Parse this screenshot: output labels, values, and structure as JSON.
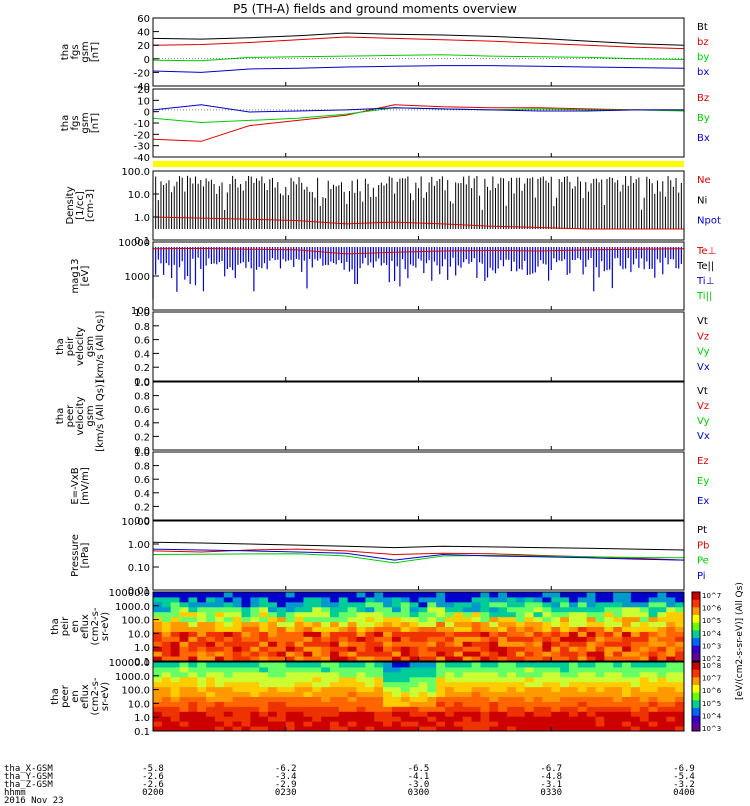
{
  "title": "P5 (TH-A) fields and ground moments overview",
  "colors": {
    "black": "#000000",
    "red": "#dd0000",
    "green": "#00cc00",
    "blue": "#0000cc",
    "yellow": "#ffff00"
  },
  "chart_data": {
    "type": "line",
    "x_ticks": [
      "0200",
      "0230",
      "0300",
      "0330",
      "0400"
    ],
    "panels": [
      {
        "id": "fgs-gsm",
        "ylabel": [
          "tha",
          "fgs",
          "gsm",
          "[nT]"
        ],
        "yticks": [
          "60",
          "40",
          "20",
          "0",
          "-20",
          "-40"
        ],
        "ylim": [
          -40,
          60
        ],
        "legend": [
          {
            "name": "Bt",
            "color": "#000000"
          },
          {
            "name": "bz",
            "color": "#dd0000"
          },
          {
            "name": "by",
            "color": "#00cc00"
          },
          {
            "name": "bx",
            "color": "#0000cc"
          }
        ],
        "series": [
          {
            "name": "Bt",
            "values": [
              30,
              29,
              31,
              34,
              38,
              36,
              35,
              33,
              30,
              26,
              22,
              20
            ]
          },
          {
            "name": "bz",
            "values": [
              20,
              21,
              24,
              28,
              32,
              30,
              28,
              26,
              23,
              20,
              17,
              15
            ]
          },
          {
            "name": "by",
            "values": [
              -2,
              -3,
              2,
              3,
              4,
              5,
              6,
              4,
              3,
              2,
              0,
              -1
            ]
          },
          {
            "name": "bx",
            "values": [
              -18,
              -20,
              -15,
              -14,
              -12,
              -11,
              -10,
              -10,
              -11,
              -12,
              -13,
              -14
            ]
          }
        ]
      },
      {
        "id": "fgs-gsm-2",
        "ylabel": [
          "tha",
          "fgs",
          "gsm",
          "[nT]"
        ],
        "yticks": [
          "20",
          "10",
          "0",
          "-10",
          "-20",
          "-30",
          "-40"
        ],
        "ylim": [
          -45,
          20
        ],
        "legend": [
          {
            "name": "Bz",
            "color": "#dd0000"
          },
          {
            "name": "By",
            "color": "#00cc00"
          },
          {
            "name": "Bx",
            "color": "#0000cc"
          }
        ],
        "series": [
          {
            "name": "Bz",
            "values": [
              -28,
              -30,
              -15,
              -10,
              -5,
              5,
              3,
              2,
              2,
              1,
              0,
              0
            ]
          },
          {
            "name": "By",
            "values": [
              -8,
              -12,
              -10,
              -8,
              -4,
              2,
              1,
              0,
              1,
              0,
              0,
              -1
            ]
          },
          {
            "name": "Bx",
            "values": [
              0,
              5,
              -2,
              -1,
              0,
              2,
              1,
              0,
              -1,
              -1,
              0,
              0
            ]
          }
        ]
      },
      {
        "id": "density",
        "ylabel": [
          "Density",
          "[1/cc]",
          "[cm-3]"
        ],
        "yticks": [
          "100.0",
          "10.0",
          "1.0",
          "0.1"
        ],
        "ylim": [
          0.1,
          100
        ],
        "legend": [
          {
            "name": "Ne",
            "color": "#dd0000"
          },
          {
            "name": "Ni",
            "color": "#000000"
          },
          {
            "name": "Npot",
            "color": "#0000cc"
          }
        ],
        "series": [
          {
            "name": "Ne",
            "values": [
              1.0,
              0.9,
              0.8,
              0.7,
              0.5,
              0.6,
              0.5,
              0.4,
              0.35,
              0.3,
              0.3,
              0.3
            ]
          }
        ]
      },
      {
        "id": "temperature",
        "ylabel": [
          "mag13",
          "[eV]"
        ],
        "yticks": [
          "10000",
          "1000",
          "100"
        ],
        "ylim": [
          10,
          10000
        ],
        "legend": [
          {
            "name": "Te⊥",
            "color": "#dd0000"
          },
          {
            "name": "Te||",
            "color": "#000000"
          },
          {
            "name": "Ti⊥",
            "color": "#0000cc"
          },
          {
            "name": "Ti||",
            "color": "#00cc00"
          }
        ],
        "series": [
          {
            "name": "Te⊥",
            "values": [
              5000,
              5200,
              4800,
              4500,
              3000,
              3500,
              4000,
              4200,
              4000,
              4500,
              4800,
              5000
            ]
          }
        ]
      },
      {
        "id": "peir-velocity",
        "ylabel": [
          "tha",
          "peir",
          "velocity",
          "gsm",
          "[km/s (All Qs)]"
        ],
        "yticks": [
          "1.0",
          "0.8",
          "0.6",
          "0.4",
          "0.2",
          "0.0"
        ],
        "ylim": [
          0,
          1
        ],
        "legend": [
          {
            "name": "Vt",
            "color": "#000000"
          },
          {
            "name": "Vz",
            "color": "#dd0000"
          },
          {
            "name": "Vy",
            "color": "#00cc00"
          },
          {
            "name": "Vx",
            "color": "#0000cc"
          }
        ],
        "series": []
      },
      {
        "id": "peer-velocity",
        "ylabel": [
          "tha",
          "peer",
          "velocity",
          "gsm",
          "[km/s (All Qs)]"
        ],
        "yticks": [
          "1.0",
          "0.8",
          "0.6",
          "0.4",
          "0.2",
          "0.0"
        ],
        "ylim": [
          0,
          1
        ],
        "legend": [
          {
            "name": "Vt",
            "color": "#000000"
          },
          {
            "name": "Vz",
            "color": "#dd0000"
          },
          {
            "name": "Vy",
            "color": "#00cc00"
          },
          {
            "name": "Vx",
            "color": "#0000cc"
          }
        ],
        "series": []
      },
      {
        "id": "efield",
        "ylabel": [
          "E=-VxB",
          "[mV/m]"
        ],
        "yticks": [
          "1.0",
          "0.8",
          "0.6",
          "0.4",
          "0.2",
          "0.0"
        ],
        "ylim": [
          0,
          1
        ],
        "legend": [
          {
            "name": "Ez",
            "color": "#dd0000"
          },
          {
            "name": "Ey",
            "color": "#00cc00"
          },
          {
            "name": "Ex",
            "color": "#0000cc"
          }
        ],
        "series": []
      },
      {
        "id": "pressure",
        "ylabel": [
          "Pressure",
          "[nPa]"
        ],
        "yticks": [
          "10.00",
          "1.00",
          "0.10",
          "0.01"
        ],
        "ylim": [
          0.01,
          10
        ],
        "legend": [
          {
            "name": "Pt",
            "color": "#000000"
          },
          {
            "name": "Pb",
            "color": "#dd0000"
          },
          {
            "name": "Pe",
            "color": "#00cc00"
          },
          {
            "name": "Pi",
            "color": "#0000cc"
          }
        ],
        "series": [
          {
            "name": "Pt",
            "values": [
              1.2,
              1.1,
              1.0,
              0.9,
              0.8,
              0.7,
              0.8,
              0.75,
              0.7,
              0.65,
              0.6,
              0.55
            ]
          },
          {
            "name": "Pb",
            "values": [
              0.5,
              0.45,
              0.55,
              0.6,
              0.5,
              0.35,
              0.4,
              0.38,
              0.32,
              0.28,
              0.24,
              0.2
            ]
          },
          {
            "name": "Pe",
            "values": [
              0.35,
              0.36,
              0.37,
              0.38,
              0.3,
              0.15,
              0.3,
              0.32,
              0.3,
              0.28,
              0.26,
              0.25
            ]
          },
          {
            "name": "Pi",
            "values": [
              0.6,
              0.55,
              0.5,
              0.45,
              0.4,
              0.2,
              0.35,
              0.3,
              0.28,
              0.25,
              0.22,
              0.2
            ]
          }
        ]
      },
      {
        "id": "peir-eflux",
        "ylabel": [
          "tha",
          "peir",
          "en",
          "eflux",
          "(cm2-s-",
          "sr-eV)"
        ],
        "yticks": [
          "10000.0",
          "1000.0",
          "100.0",
          "10.0",
          "1.0",
          "0.1"
        ],
        "ylim": [
          0.1,
          10000
        ]
      },
      {
        "id": "peer-eflux",
        "ylabel": [
          "tha",
          "peer",
          "en",
          "eflux",
          "(cm2-s-",
          "sr-eV)"
        ],
        "yticks": [
          "10000.0",
          "1000.0",
          "100.0",
          "10.0",
          "1.0",
          "0.1"
        ],
        "ylim": [
          0.1,
          10000
        ]
      }
    ],
    "colorbar": {
      "label": "[eV/(cm2-s-sr-eV)] (All Qs)",
      "ticks": [
        "10^7",
        "10^6",
        "10^5",
        "10^4",
        "10^3",
        "10^2"
      ],
      "ticks2": [
        "10^8",
        "10^7",
        "10^6",
        "10^5",
        "10^4",
        "10^3"
      ]
    }
  },
  "footer": {
    "rows": [
      {
        "label": "tha_X-GSM",
        "values": [
          "-5.8",
          "-6.2",
          "-6.5",
          "-6.7",
          "-6.9"
        ]
      },
      {
        "label": "tha_Y-GSM",
        "values": [
          "-2.6",
          "-3.4",
          "-4.1",
          "-4.8",
          "-5.4"
        ]
      },
      {
        "label": "tha_Z-GSM",
        "values": [
          "-2.6",
          "-2.9",
          "-3.0",
          "-3.1",
          "-3.2"
        ]
      },
      {
        "label": "hhmm",
        "values": [
          "0200",
          "0230",
          "0300",
          "0330",
          "0400"
        ]
      }
    ],
    "date": "2016 Nov 23"
  }
}
